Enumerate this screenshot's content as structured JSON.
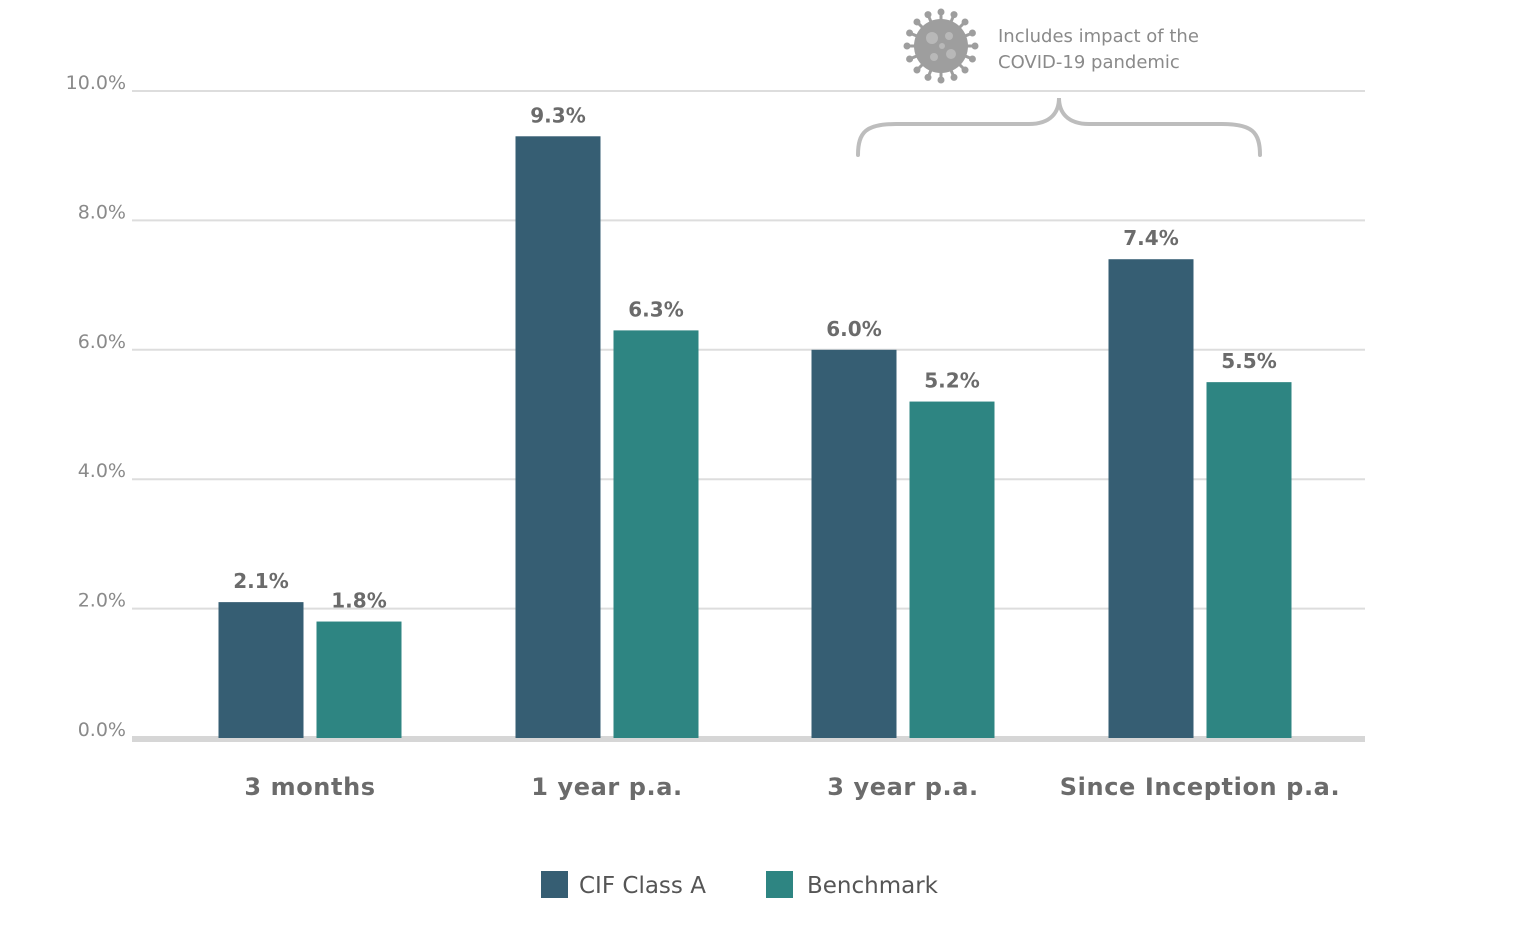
{
  "chart_data": {
    "type": "bar",
    "categories": [
      "3 months",
      "1 year p.a.",
      "3 year p.a.",
      "Since Inception p.a."
    ],
    "series": [
      {
        "name": "CIF Class A",
        "color": "#365e73",
        "values": [
          2.1,
          9.3,
          6.0,
          7.4
        ],
        "labels": [
          "2.1%",
          "9.3%",
          "6.0%",
          "7.4%"
        ]
      },
      {
        "name": "Benchmark",
        "color": "#2e8582",
        "values": [
          1.8,
          6.3,
          5.2,
          5.5
        ],
        "labels": [
          "1.8%",
          "6.3%",
          "5.2%",
          "5.5%"
        ]
      }
    ],
    "ylim": [
      0,
      10
    ],
    "yticks": [
      0,
      2,
      4,
      6,
      8,
      10
    ],
    "ytick_labels": [
      "0.0%",
      "2.0%",
      "4.0%",
      "6.0%",
      "8.0%",
      "10.0%"
    ],
    "grid": true,
    "legend_position": "bottom-center",
    "annotation": {
      "lines": [
        "Includes impact of the",
        "COVID-19 pandemic"
      ],
      "icon": "virus-icon",
      "spans_categories": [
        "3 year p.a.",
        "Since Inception p.a."
      ]
    },
    "colors": {
      "grid": "#dddddd",
      "axis": "#d6d6d6",
      "tick_text": "#8a8a8a",
      "label_text": "#6b6b6b",
      "brace": "#bdbdbd",
      "icon": "#9e9e9e"
    }
  }
}
